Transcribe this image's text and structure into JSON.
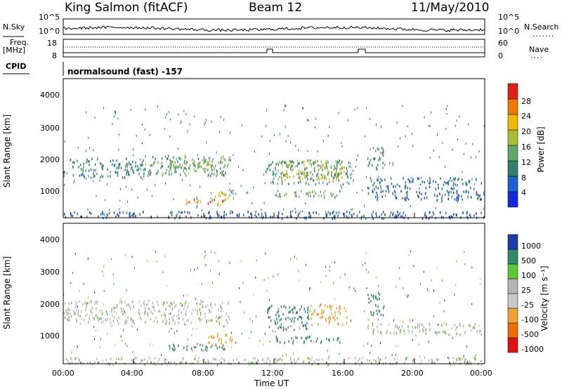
{
  "header": {
    "station": "King Salmon (fitACF)",
    "beam": "Beam 12",
    "date": "11/May/2010"
  },
  "status_panels": {
    "nsky_label": "N.Sky",
    "nsearch_label": "N.Search",
    "nsky_ticks": [
      "10^5",
      "10^0"
    ],
    "nsearch_ticks": [
      "10^5",
      "10^0"
    ],
    "freq_label_1": "Freq.",
    "freq_label_2": "[MHz]",
    "freq_ticks": [
      "18",
      "8"
    ],
    "nave_label": "Nave",
    "nave_ticks": [
      "60",
      "0"
    ],
    "cpid_label": "CPID",
    "cpid_text": "normalsound (fast) -157"
  },
  "colors": {
    "power": [
      "#1428e0",
      "#1f5fd6",
      "#2f7f6f",
      "#5fa86a",
      "#a8c030",
      "#f0b800",
      "#f07800",
      "#e02010"
    ],
    "velocity": [
      "#e01010",
      "#f06a00",
      "#f2a030",
      "#c8c8c8",
      "#b4b4b4",
      "#5cc830",
      "#2e8a6a",
      "#1e3cb0"
    ]
  },
  "chart_data": [
    {
      "type": "heatmap",
      "name": "power",
      "title": "",
      "xlabel": "",
      "ylabel": "Slant Range [km]",
      "xlim": [
        0,
        24
      ],
      "ylim": [
        180,
        4500
      ],
      "yticks": [
        "1000",
        "2000",
        "3000",
        "4000"
      ],
      "xticks": [
        "00:00",
        "04:00",
        "08:00",
        "12:00",
        "16:00",
        "20:00",
        "00:00"
      ],
      "colorbar": {
        "label": "Power [dB]",
        "ticks": [
          "4",
          "8",
          "12",
          "16",
          "20",
          "24",
          "28"
        ],
        "range": [
          0,
          30
        ]
      },
      "echo_regions": [
        {
          "t0": 0.0,
          "t1": 4.5,
          "r0": 1450,
          "r1": 2050,
          "level": 10
        },
        {
          "t0": 4.5,
          "t1": 9.5,
          "r0": 1500,
          "r1": 2150,
          "level": 13
        },
        {
          "t0": 6.0,
          "t1": 9.0,
          "r0": 1650,
          "r1": 2000,
          "level": 16
        },
        {
          "t0": 6.8,
          "t1": 9.3,
          "r0": 600,
          "r1": 780,
          "level": 26
        },
        {
          "t0": 8.3,
          "t1": 9.7,
          "r0": 750,
          "r1": 1100,
          "level": 18
        },
        {
          "t0": 11.5,
          "t1": 16.5,
          "r0": 1250,
          "r1": 2000,
          "level": 12
        },
        {
          "t0": 12.2,
          "t1": 16.0,
          "r0": 1400,
          "r1": 2000,
          "level": 19
        },
        {
          "t0": 12.0,
          "t1": 16.0,
          "r0": 850,
          "r1": 1050,
          "level": 14
        },
        {
          "t0": 17.3,
          "t1": 18.3,
          "r0": 1700,
          "r1": 2400,
          "level": 12
        },
        {
          "t0": 17.3,
          "t1": 23.8,
          "r0": 1100,
          "r1": 1450,
          "level": 8
        },
        {
          "t0": 17.3,
          "t1": 23.8,
          "r0": 750,
          "r1": 1050,
          "level": 6
        },
        {
          "t0": 0.0,
          "t1": 24.0,
          "r0": 180,
          "r1": 400,
          "level": 6
        }
      ]
    },
    {
      "type": "heatmap",
      "name": "velocity",
      "title": "",
      "xlabel": "Time UT",
      "ylabel": "Slant Range [km]",
      "xlim": [
        0,
        24
      ],
      "ylim": [
        180,
        4500
      ],
      "yticks": [
        "1000",
        "2000",
        "3000",
        "4000"
      ],
      "xticks": [
        "00:00",
        "04:00",
        "08:00",
        "12:00",
        "16:00",
        "20:00",
        "00:00"
      ],
      "colorbar": {
        "label": "Velocity [m s⁻¹]",
        "ticks": [
          "-1000",
          "-500",
          "-100",
          "-25",
          "25",
          "100",
          "500",
          "1000"
        ],
        "range": [
          -1200,
          1200
        ]
      },
      "echo_regions": [
        {
          "t0": 0.0,
          "t1": 9.5,
          "r0": 1450,
          "r1": 2150,
          "velocity": 0
        },
        {
          "t0": 6.0,
          "t1": 9.5,
          "r0": 600,
          "r1": 800,
          "velocity": 150
        },
        {
          "t0": 8.2,
          "t1": 9.7,
          "r0": 750,
          "r1": 1150,
          "velocity": -300
        },
        {
          "t0": 11.5,
          "t1": 14.0,
          "r0": 1250,
          "r1": 2000,
          "velocity": 400
        },
        {
          "t0": 14.0,
          "t1": 16.2,
          "r0": 1400,
          "r1": 2000,
          "velocity": -300
        },
        {
          "t0": 12.0,
          "t1": 16.0,
          "r0": 850,
          "r1": 1050,
          "velocity": 150
        },
        {
          "t0": 17.3,
          "t1": 18.3,
          "r0": 1700,
          "r1": 2400,
          "velocity": 300
        },
        {
          "t0": 17.3,
          "t1": 23.8,
          "r0": 1100,
          "r1": 1450,
          "velocity": 0
        },
        {
          "t0": 0.0,
          "t1": 24.0,
          "r0": 180,
          "r1": 400,
          "velocity": 0
        }
      ]
    }
  ]
}
